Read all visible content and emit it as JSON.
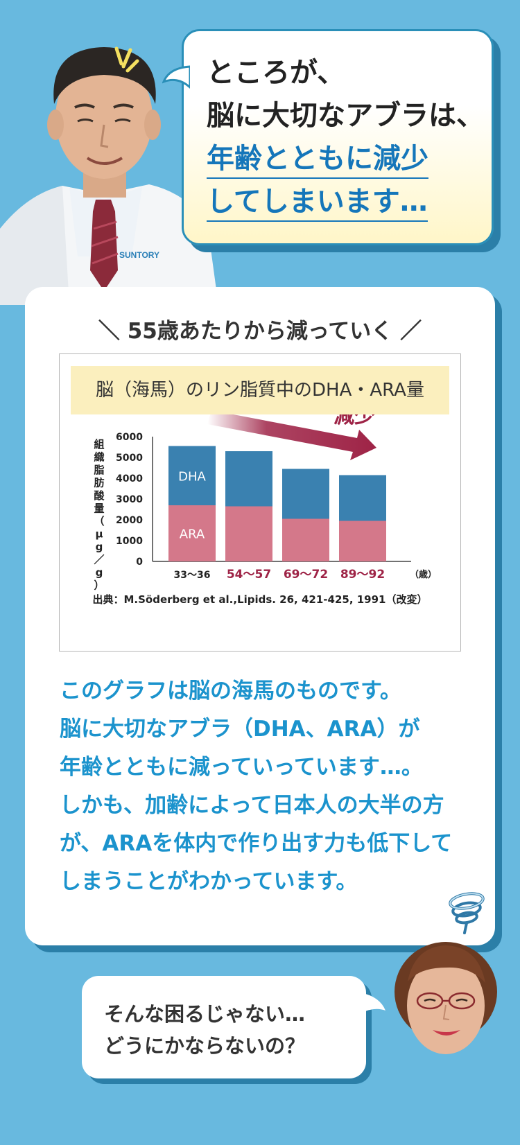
{
  "top_bubble": {
    "line1": "ところが、",
    "line2": "脳に大切なアブラは、",
    "line3": "年齢とともに減少",
    "line4": "してしまいます…"
  },
  "doctor": {
    "coat_logo": "SUNTORY"
  },
  "card": {
    "heading": "＼ 55歳あたりから減っていく ／"
  },
  "chart_data": {
    "type": "bar",
    "stacked": true,
    "title": "脳（海馬）のリン脂質中のDHA・ARA量",
    "ylabel": "組織脂肪酸量（μg／g）",
    "xlabel_unit": "（歳）",
    "categories": [
      "33〜36",
      "54〜57",
      "69〜72",
      "89〜92"
    ],
    "series": [
      {
        "name": "ARA",
        "values": [
          2700,
          2650,
          2050,
          1950
        ]
      },
      {
        "name": "DHA",
        "values": [
          2850,
          2650,
          2400,
          2200
        ]
      }
    ],
    "ylim": [
      0,
      6000
    ],
    "yticks": [
      "6000",
      "5000",
      "4000",
      "3000",
      "2000",
      "1000",
      "0"
    ],
    "annotation": "減少",
    "source": "出典：M.Söderberg et al.,Lipids. 26, 421-425, 1991（改変）",
    "colors": {
      "ARA": "#d4788a",
      "DHA": "#3a81b0",
      "accent": "#9e2346",
      "tick_highlight": "#9e2346"
    }
  },
  "body": {
    "lines": [
      "このグラフは脳の海馬のものです。",
      "脳に大切なアブラ（DHA、ARA）が",
      "年齢とともに減っていっています…。",
      "しかも、加齢によって日本人の大半の方",
      "が、ARAを体内で作り出す力も低下して",
      "しまうことがわかっています。"
    ]
  },
  "bottom_bubble": {
    "line1": "そんな困るじゃない…",
    "line2": "どうにかならないの？"
  },
  "icons": {
    "swirl": "dizzy-swirl-icon"
  }
}
